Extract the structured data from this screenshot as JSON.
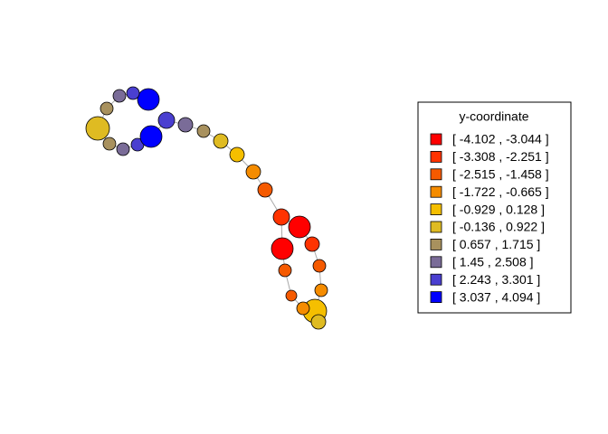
{
  "legend": {
    "title": "y-coordinate",
    "entries": [
      {
        "label": "[ -4.102 ,  -3.044 ]",
        "color": "#ff0000"
      },
      {
        "label": "[ -3.308 ,  -2.251 ]",
        "color": "#ff3300"
      },
      {
        "label": "[ -2.515 ,  -1.458 ]",
        "color": "#f55a00"
      },
      {
        "label": "[ -1.722 ,  -0.665 ]",
        "color": "#f58c00"
      },
      {
        "label": "[ -0.929 ,  0.128 ]",
        "color": "#f5bf00"
      },
      {
        "label": "[ -0.136 ,  0.922 ]",
        "color": "#dfbb22"
      },
      {
        "label": "[ 0.657 ,  1.715 ]",
        "color": "#a8915e"
      },
      {
        "label": "[ 1.45 ,  2.508 ]",
        "color": "#7a6c98"
      },
      {
        "label": "[ 2.243 ,  3.301 ]",
        "color": "#4a3fd0"
      },
      {
        "label": "[ 3.037 ,  4.094 ]",
        "color": "#0000ff"
      }
    ]
  }
}
